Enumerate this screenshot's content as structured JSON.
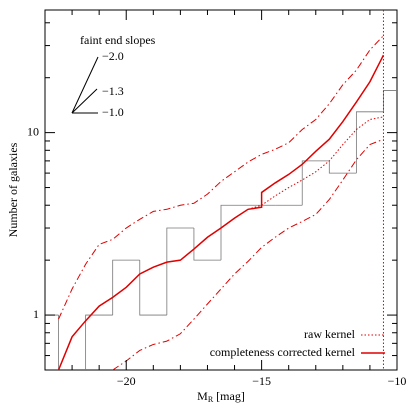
{
  "chart_data": {
    "type": "line",
    "x_label": {
      "main": "M",
      "sub": "R",
      "unit": "[mag]"
    },
    "y_label": "Number of galaxies",
    "log_y": true,
    "xlim": [
      -23,
      -10
    ],
    "ylim": [
      0.5,
      47
    ],
    "xticks": [
      {
        "value": -20,
        "label": "−20"
      },
      {
        "value": -15,
        "label": "−15"
      },
      {
        "value": -10,
        "label": "−10"
      }
    ],
    "xminor_ticks": [
      -22,
      -21,
      -19,
      -18,
      -17,
      -16,
      -14,
      -13,
      -12,
      -11
    ],
    "yticks": [
      1,
      10
    ],
    "yminor_ticks": [
      0.5,
      0.6,
      0.7,
      0.8,
      0.9,
      2,
      3,
      4,
      5,
      6,
      7,
      8,
      9,
      20,
      30,
      40
    ],
    "histogram": {
      "color": "#777777",
      "bins": [
        -23.5,
        -22.5,
        -21.5,
        -20.5,
        -19.5,
        -18.5,
        -17.5,
        -16.5,
        -15.5,
        -14.5,
        -13.5,
        -12.5,
        -11.5,
        -10.5,
        -9.5
      ],
      "values": [
        1,
        0,
        1,
        2,
        1,
        3,
        2,
        4,
        4,
        4,
        7,
        6,
        13,
        17
      ]
    },
    "series": [
      {
        "name": "raw kernel",
        "color": "#e00000",
        "style": "dotted",
        "x": [
          -15.5,
          -15,
          -14.5,
          -14,
          -13.5,
          -13,
          -12.5,
          -12,
          -11.5,
          -11,
          -10.5
        ],
        "values": [
          3.8,
          4.0,
          4.5,
          5.0,
          5.5,
          6.1,
          7.0,
          8.6,
          10.4,
          11.8,
          12.2
        ]
      },
      {
        "name": "completeness corrected kernel",
        "color": "#e00000",
        "style": "solid",
        "x": [
          -22.5,
          -22,
          -21.5,
          -21,
          -20.5,
          -20,
          -19.5,
          -19,
          -18.5,
          -18,
          -17.5,
          -17,
          -16.5,
          -16,
          -15.5,
          -15,
          -15,
          -14.5,
          -14,
          -13.5,
          -13,
          -12.5,
          -12,
          -11.5,
          -11,
          -10.5
        ],
        "values": [
          0.5,
          0.76,
          0.93,
          1.12,
          1.25,
          1.42,
          1.68,
          1.83,
          1.95,
          2.0,
          2.3,
          2.67,
          3.0,
          3.4,
          3.8,
          3.9,
          4.7,
          5.3,
          5.9,
          6.7,
          7.9,
          9.2,
          11.5,
          14.7,
          19,
          26.6
        ]
      },
      {
        "color": "#e00000",
        "style": "dashdot",
        "x": [
          -22.5,
          -22,
          -21.5,
          -21,
          -20.5,
          -20,
          -19.5,
          -19,
          -18.5,
          -18,
          -17.5,
          -17,
          -16.5,
          -16,
          -15.5,
          -15,
          -14.5,
          -14,
          -13.5,
          -13,
          -12.5,
          -12,
          -11.5,
          -11,
          -10.5
        ],
        "values": [
          0.95,
          1.39,
          1.9,
          2.44,
          2.6,
          3.0,
          3.35,
          3.7,
          3.8,
          4.0,
          4.1,
          4.6,
          5.4,
          6.1,
          6.9,
          7.6,
          8.1,
          8.8,
          10.4,
          11.8,
          14.4,
          18.3,
          22,
          28.4,
          34
        ]
      },
      {
        "color": "#e00000",
        "style": "dashdot",
        "x": [
          -20.5,
          -20,
          -19.5,
          -19,
          -18.5,
          -18,
          -17.5,
          -17,
          -16.5,
          -16,
          -15.5,
          -15,
          -14.5,
          -14,
          -13.5,
          -13,
          -12.5,
          -12,
          -11.5,
          -11,
          -10.5
        ],
        "values": [
          0.5,
          0.56,
          0.64,
          0.69,
          0.72,
          0.79,
          0.95,
          1.15,
          1.39,
          1.68,
          1.97,
          2.35,
          2.67,
          3.0,
          3.26,
          3.56,
          4.3,
          5.5,
          7.1,
          8.6,
          9.2
        ]
      }
    ],
    "vline": -10.5,
    "inset": {
      "title": "faint end slopes",
      "labels": [
        "−2.0",
        "−1.3",
        "−1.0"
      ]
    },
    "legend": "lower right"
  }
}
